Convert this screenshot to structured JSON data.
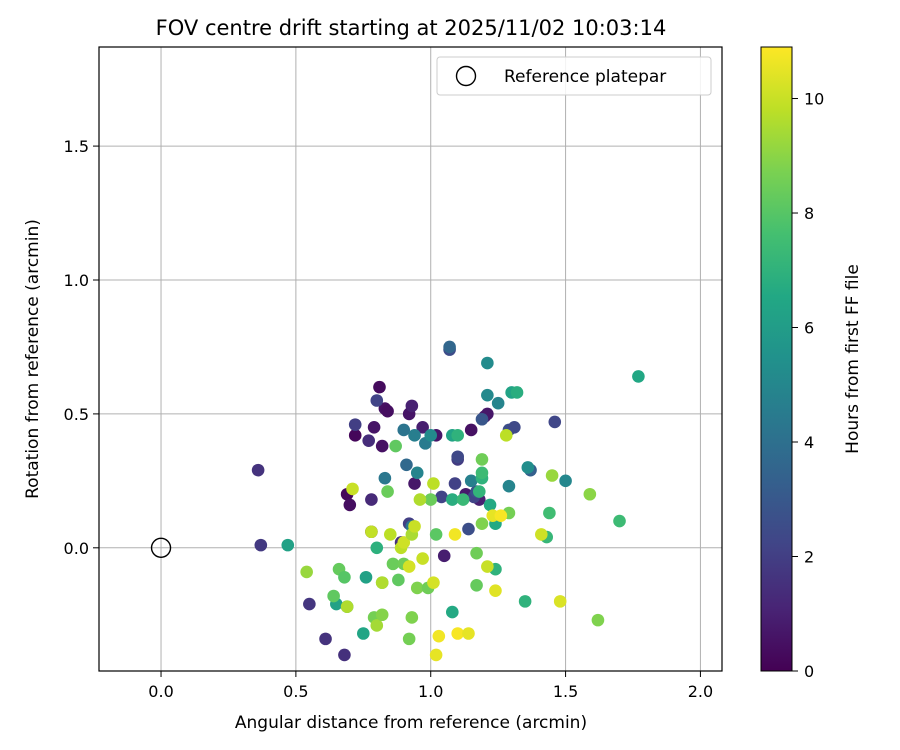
{
  "chart_data": {
    "type": "scatter",
    "title": "FOV centre drift starting at 2025/11/02 10:03:14",
    "xlabel": "Angular distance from reference (arcmin)",
    "ylabel": "Rotation from reference (arcmin)",
    "xlim": [
      -0.23,
      2.08
    ],
    "ylim": [
      -0.46,
      1.87
    ],
    "xticks": [
      "0.0",
      "0.5",
      "1.0",
      "1.5",
      "2.0"
    ],
    "xtick_values": [
      0.0,
      0.5,
      1.0,
      1.5,
      2.0
    ],
    "yticks": [
      "0.0",
      "0.5",
      "1.0",
      "1.5"
    ],
    "ytick_values": [
      0.0,
      0.5,
      1.0,
      1.5
    ],
    "grid": true,
    "legend": {
      "location": "top-right",
      "entries": [
        "Reference platepar"
      ]
    },
    "reference_point": {
      "x": 0.0,
      "y": 0.0,
      "label": "Reference platepar"
    },
    "colorbar": {
      "label": "Hours from first FF file",
      "colormap": "viridis",
      "range": [
        0,
        10.9
      ],
      "ticks": [
        "0",
        "2",
        "4",
        "6",
        "8",
        "10"
      ],
      "tick_values": [
        0,
        2,
        4,
        6,
        8,
        10
      ]
    },
    "points": [
      {
        "x": 0.72,
        "y": 0.42,
        "h": 0.2
      },
      {
        "x": 0.79,
        "y": 0.45,
        "h": 0.6
      },
      {
        "x": 0.81,
        "y": 0.6,
        "h": 0.3
      },
      {
        "x": 0.83,
        "y": 0.52,
        "h": 0.5
      },
      {
        "x": 0.84,
        "y": 0.51,
        "h": 0.4
      },
      {
        "x": 0.82,
        "y": 0.38,
        "h": 0.5
      },
      {
        "x": 0.69,
        "y": 0.2,
        "h": 0.2
      },
      {
        "x": 0.7,
        "y": 0.16,
        "h": 0.4
      },
      {
        "x": 0.78,
        "y": 0.06,
        "h": 0.3
      },
      {
        "x": 0.92,
        "y": 0.5,
        "h": 0.6
      },
      {
        "x": 0.93,
        "y": 0.53,
        "h": 1.0
      },
      {
        "x": 0.94,
        "y": 0.24,
        "h": 0.7
      },
      {
        "x": 0.97,
        "y": 0.45,
        "h": 0.9
      },
      {
        "x": 1.02,
        "y": 0.42,
        "h": 0.7
      },
      {
        "x": 1.15,
        "y": 0.44,
        "h": 0.5
      },
      {
        "x": 1.2,
        "y": 0.49,
        "h": 0.9
      },
      {
        "x": 1.21,
        "y": 0.5,
        "h": 0.7
      },
      {
        "x": 1.18,
        "y": 0.18,
        "h": 1.0
      },
      {
        "x": 1.05,
        "y": -0.03,
        "h": 0.9
      },
      {
        "x": 1.13,
        "y": 0.2,
        "h": 0.8
      },
      {
        "x": 0.36,
        "y": 0.29,
        "h": 1.6
      },
      {
        "x": 0.37,
        "y": 0.01,
        "h": 1.8
      },
      {
        "x": 0.55,
        "y": -0.21,
        "h": 1.7
      },
      {
        "x": 0.61,
        "y": -0.34,
        "h": 1.6
      },
      {
        "x": 0.68,
        "y": -0.4,
        "h": 1.5
      },
      {
        "x": 0.72,
        "y": 0.46,
        "h": 2.0
      },
      {
        "x": 0.77,
        "y": 0.4,
        "h": 1.4
      },
      {
        "x": 0.78,
        "y": 0.18,
        "h": 1.3
      },
      {
        "x": 0.8,
        "y": 0.55,
        "h": 2.2
      },
      {
        "x": 0.89,
        "y": 0.02,
        "h": 1.5
      },
      {
        "x": 0.92,
        "y": 0.09,
        "h": 2.0
      },
      {
        "x": 1.04,
        "y": 0.19,
        "h": 2.2
      },
      {
        "x": 1.07,
        "y": 0.74,
        "h": 2.5
      },
      {
        "x": 1.09,
        "y": 0.24,
        "h": 2.1
      },
      {
        "x": 1.1,
        "y": 0.33,
        "h": 1.9
      },
      {
        "x": 1.1,
        "y": 0.34,
        "h": 2.4
      },
      {
        "x": 1.14,
        "y": 0.07,
        "h": 2.6
      },
      {
        "x": 1.16,
        "y": 0.19,
        "h": 2.2
      },
      {
        "x": 1.17,
        "y": 0.21,
        "h": 2.7
      },
      {
        "x": 1.19,
        "y": 0.48,
        "h": 2.9
      },
      {
        "x": 1.29,
        "y": 0.44,
        "h": 2.6
      },
      {
        "x": 1.31,
        "y": 0.45,
        "h": 2.4
      },
      {
        "x": 1.37,
        "y": 0.29,
        "h": 3.3
      },
      {
        "x": 1.46,
        "y": 0.47,
        "h": 2.3
      },
      {
        "x": 1.07,
        "y": 0.75,
        "h": 3.6
      },
      {
        "x": 0.83,
        "y": 0.26,
        "h": 4.3
      },
      {
        "x": 0.9,
        "y": 0.44,
        "h": 4.2
      },
      {
        "x": 0.91,
        "y": 0.31,
        "h": 3.7
      },
      {
        "x": 0.93,
        "y": 0.08,
        "h": 4.3
      },
      {
        "x": 0.94,
        "y": 0.42,
        "h": 4.6
      },
      {
        "x": 0.95,
        "y": 0.28,
        "h": 4.9
      },
      {
        "x": 0.98,
        "y": 0.39,
        "h": 4.5
      },
      {
        "x": 1.0,
        "y": 0.42,
        "h": 5.2
      },
      {
        "x": 1.21,
        "y": 0.57,
        "h": 5.1
      },
      {
        "x": 1.21,
        "y": 0.69,
        "h": 5.2
      },
      {
        "x": 1.25,
        "y": 0.54,
        "h": 4.9
      },
      {
        "x": 1.29,
        "y": 0.23,
        "h": 4.9
      },
      {
        "x": 1.36,
        "y": 0.3,
        "h": 5.3
      },
      {
        "x": 1.5,
        "y": 0.25,
        "h": 5.0
      },
      {
        "x": 1.15,
        "y": 0.25,
        "h": 4.7
      },
      {
        "x": 0.47,
        "y": 0.01,
        "h": 6.2
      },
      {
        "x": 0.65,
        "y": -0.21,
        "h": 6.2
      },
      {
        "x": 0.69,
        "y": -0.22,
        "h": 6.5
      },
      {
        "x": 0.75,
        "y": -0.32,
        "h": 6.4
      },
      {
        "x": 0.76,
        "y": -0.11,
        "h": 6.2
      },
      {
        "x": 0.8,
        "y": 0.0,
        "h": 6.9
      },
      {
        "x": 1.08,
        "y": -0.24,
        "h": 6.6
      },
      {
        "x": 1.08,
        "y": 0.42,
        "h": 6.3
      },
      {
        "x": 1.1,
        "y": 0.42,
        "h": 7.0
      },
      {
        "x": 1.19,
        "y": 0.26,
        "h": 7.0
      },
      {
        "x": 1.22,
        "y": 0.16,
        "h": 6.6
      },
      {
        "x": 1.24,
        "y": 0.09,
        "h": 6.6
      },
      {
        "x": 1.24,
        "y": -0.08,
        "h": 7.0
      },
      {
        "x": 1.3,
        "y": 0.58,
        "h": 6.3
      },
      {
        "x": 1.32,
        "y": 0.58,
        "h": 6.8
      },
      {
        "x": 1.35,
        "y": -0.2,
        "h": 7.0
      },
      {
        "x": 1.43,
        "y": 0.04,
        "h": 7.2
      },
      {
        "x": 1.44,
        "y": 0.13,
        "h": 7.5
      },
      {
        "x": 1.7,
        "y": 0.1,
        "h": 7.4
      },
      {
        "x": 1.77,
        "y": 0.64,
        "h": 6.5
      },
      {
        "x": 1.08,
        "y": 0.18,
        "h": 6.8
      },
      {
        "x": 1.12,
        "y": 0.18,
        "h": 7.3
      },
      {
        "x": 1.18,
        "y": 0.21,
        "h": 7.1
      },
      {
        "x": 1.19,
        "y": 0.28,
        "h": 7.4
      },
      {
        "x": 0.64,
        "y": -0.18,
        "h": 8.2
      },
      {
        "x": 0.66,
        "y": -0.08,
        "h": 8.3
      },
      {
        "x": 0.68,
        "y": -0.11,
        "h": 8.0
      },
      {
        "x": 0.79,
        "y": -0.26,
        "h": 8.6
      },
      {
        "x": 0.82,
        "y": -0.13,
        "h": 8.4
      },
      {
        "x": 0.84,
        "y": 0.21,
        "h": 8.4
      },
      {
        "x": 0.86,
        "y": -0.06,
        "h": 8.4
      },
      {
        "x": 0.88,
        "y": -0.12,
        "h": 8.2
      },
      {
        "x": 0.87,
        "y": 0.38,
        "h": 8.2
      },
      {
        "x": 0.9,
        "y": -0.06,
        "h": 8.5
      },
      {
        "x": 0.92,
        "y": -0.34,
        "h": 8.6
      },
      {
        "x": 0.93,
        "y": -0.26,
        "h": 8.8
      },
      {
        "x": 0.95,
        "y": -0.15,
        "h": 8.8
      },
      {
        "x": 0.99,
        "y": -0.15,
        "h": 8.5
      },
      {
        "x": 1.0,
        "y": 0.18,
        "h": 8.4
      },
      {
        "x": 1.02,
        "y": 0.05,
        "h": 8.1
      },
      {
        "x": 1.17,
        "y": -0.14,
        "h": 8.3
      },
      {
        "x": 1.17,
        "y": -0.02,
        "h": 8.5
      },
      {
        "x": 1.19,
        "y": 0.09,
        "h": 8.8
      },
      {
        "x": 1.19,
        "y": 0.33,
        "h": 8.5
      },
      {
        "x": 1.29,
        "y": 0.13,
        "h": 8.6
      },
      {
        "x": 1.45,
        "y": 0.27,
        "h": 9.2
      },
      {
        "x": 1.59,
        "y": 0.2,
        "h": 9.0
      },
      {
        "x": 1.62,
        "y": -0.27,
        "h": 8.8
      },
      {
        "x": 0.54,
        "y": -0.09,
        "h": 9.2
      },
      {
        "x": 0.69,
        "y": -0.22,
        "h": 9.6
      },
      {
        "x": 0.71,
        "y": 0.22,
        "h": 10.0
      },
      {
        "x": 0.78,
        "y": 0.06,
        "h": 9.9
      },
      {
        "x": 0.82,
        "y": -0.13,
        "h": 9.6
      },
      {
        "x": 0.85,
        "y": 0.05,
        "h": 9.8
      },
      {
        "x": 0.89,
        "y": 0.0,
        "h": 9.8
      },
      {
        "x": 0.9,
        "y": 0.02,
        "h": 10.1
      },
      {
        "x": 0.92,
        "y": -0.07,
        "h": 10.2
      },
      {
        "x": 0.93,
        "y": 0.05,
        "h": 9.5
      },
      {
        "x": 0.94,
        "y": 0.08,
        "h": 10.0
      },
      {
        "x": 0.96,
        "y": 0.18,
        "h": 9.6
      },
      {
        "x": 0.97,
        "y": -0.04,
        "h": 10.0
      },
      {
        "x": 1.01,
        "y": -0.13,
        "h": 10.2
      },
      {
        "x": 1.01,
        "y": 0.24,
        "h": 9.8
      },
      {
        "x": 1.02,
        "y": -0.4,
        "h": 10.5
      },
      {
        "x": 1.03,
        "y": -0.33,
        "h": 10.7
      },
      {
        "x": 1.09,
        "y": 0.05,
        "h": 10.7
      },
      {
        "x": 1.1,
        "y": -0.32,
        "h": 10.8
      },
      {
        "x": 1.14,
        "y": -0.32,
        "h": 10.5
      },
      {
        "x": 1.21,
        "y": -0.07,
        "h": 10.0
      },
      {
        "x": 1.23,
        "y": 0.12,
        "h": 10.5
      },
      {
        "x": 1.24,
        "y": -0.16,
        "h": 10.4
      },
      {
        "x": 1.26,
        "y": 0.12,
        "h": 10.8
      },
      {
        "x": 1.28,
        "y": 0.42,
        "h": 9.8
      },
      {
        "x": 1.41,
        "y": 0.05,
        "h": 10.1
      },
      {
        "x": 1.48,
        "y": -0.2,
        "h": 10.3
      },
      {
        "x": 0.8,
        "y": -0.29,
        "h": 9.4
      },
      {
        "x": 0.82,
        "y": -0.25,
        "h": 8.9
      }
    ]
  }
}
